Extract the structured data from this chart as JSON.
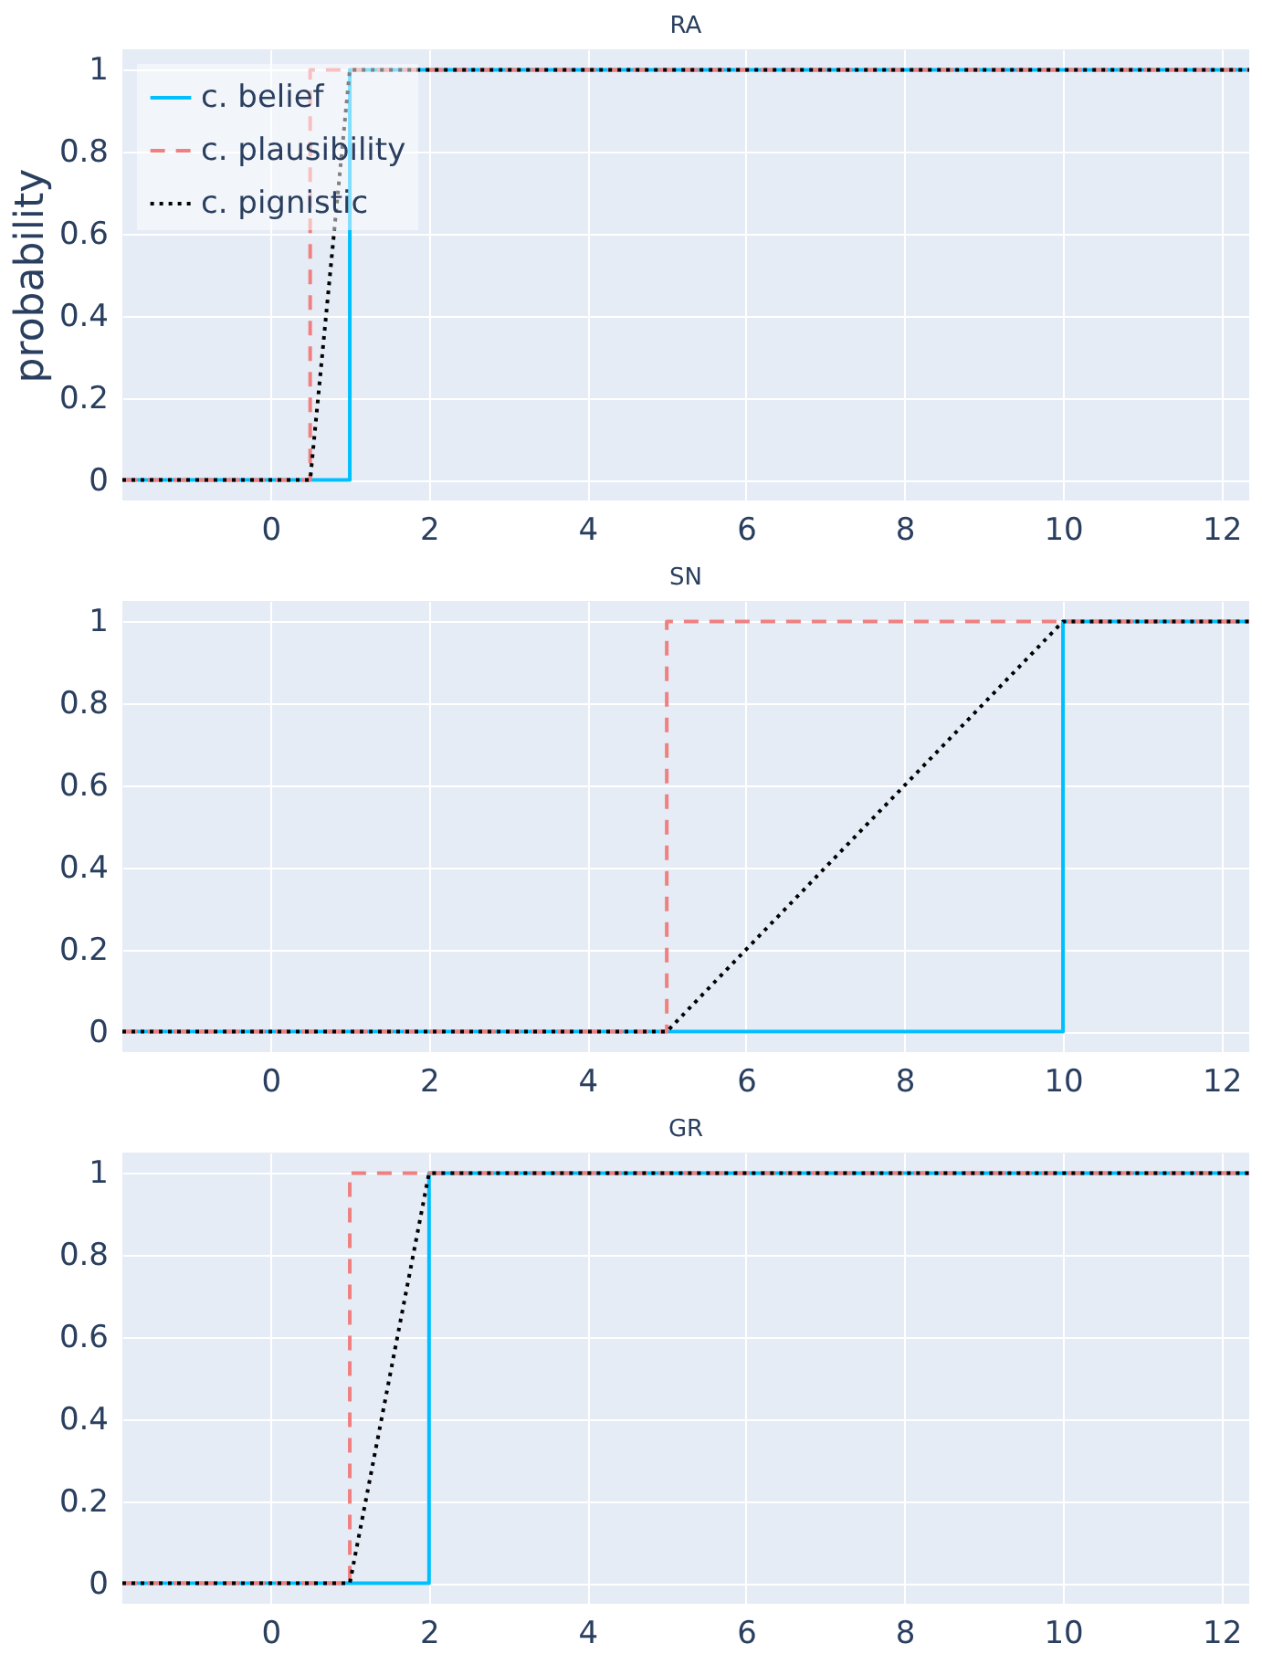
{
  "chart_data": [
    {
      "type": "line",
      "title": "RA",
      "ylabel": "probability",
      "xlim": [
        -1.87,
        12.35
      ],
      "ylim": [
        -0.05,
        1.05
      ],
      "xticks": [
        0,
        2,
        4,
        6,
        8,
        10,
        12
      ],
      "yticks": [
        0,
        0.2,
        0.4,
        0.6,
        0.8,
        1
      ],
      "grid": true,
      "legend": "top left",
      "series": [
        {
          "name": "c. belief",
          "color": "#00bfff",
          "line_style": "solid",
          "x": [
            -1.87,
            1,
            1,
            12.35
          ],
          "values": [
            0,
            0,
            1,
            1
          ]
        },
        {
          "name": "c. plausibility",
          "color": "#f08080",
          "line_style": "dashed",
          "x": [
            -1.87,
            0.5,
            0.5,
            12.35
          ],
          "values": [
            0,
            0,
            1,
            1
          ]
        },
        {
          "name": "c. pignistic",
          "color": "#000000",
          "line_style": "dotted",
          "x": [
            -1.87,
            0.5,
            1,
            12.35
          ],
          "values": [
            0,
            0,
            1,
            1
          ]
        }
      ]
    },
    {
      "type": "line",
      "title": "SN",
      "xlim": [
        -1.87,
        12.35
      ],
      "ylim": [
        -0.05,
        1.05
      ],
      "xticks": [
        0,
        2,
        4,
        6,
        8,
        10,
        12
      ],
      "yticks": [
        0,
        0.2,
        0.4,
        0.6,
        0.8,
        1
      ],
      "grid": true,
      "series": [
        {
          "color": "#00bfff",
          "line_style": "solid",
          "x": [
            -1.87,
            10,
            10,
            12.35
          ],
          "values": [
            0,
            0,
            1,
            1
          ]
        },
        {
          "color": "#f08080",
          "line_style": "dashed",
          "x": [
            -1.87,
            5,
            5,
            12.35
          ],
          "values": [
            0,
            0,
            1,
            1
          ]
        },
        {
          "color": "#000000",
          "line_style": "dotted",
          "x": [
            -1.87,
            5,
            10,
            12.35
          ],
          "values": [
            0,
            0,
            1,
            1
          ]
        }
      ]
    },
    {
      "type": "line",
      "title": "GR",
      "xlim": [
        -1.87,
        12.35
      ],
      "ylim": [
        -0.05,
        1.05
      ],
      "xticks": [
        0,
        2,
        4,
        6,
        8,
        10,
        12
      ],
      "yticks": [
        0,
        0.2,
        0.4,
        0.6,
        0.8,
        1
      ],
      "grid": true,
      "series": [
        {
          "color": "#00bfff",
          "line_style": "solid",
          "x": [
            -1.87,
            2,
            2,
            12.35
          ],
          "values": [
            0,
            0,
            1,
            1
          ]
        },
        {
          "color": "#f08080",
          "line_style": "dashed",
          "x": [
            -1.87,
            1,
            1,
            12.35
          ],
          "values": [
            0,
            0,
            1,
            1
          ]
        },
        {
          "color": "#000000",
          "line_style": "dotted",
          "x": [
            -1.87,
            1,
            2,
            12.35
          ],
          "values": [
            0,
            0,
            1,
            1
          ]
        }
      ]
    }
  ]
}
